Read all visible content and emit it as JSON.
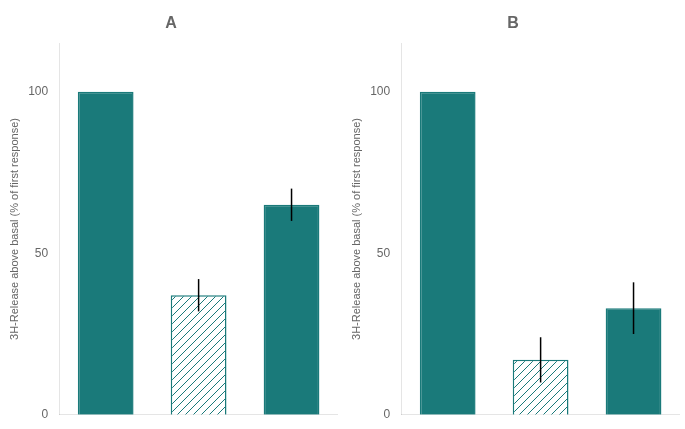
{
  "chart_data": [
    {
      "type": "bar",
      "title": "A",
      "categories": [
        null,
        null,
        null
      ],
      "values": [
        100,
        37,
        65
      ],
      "errors": [
        0,
        5,
        5
      ],
      "color": "#1a7a7a",
      "colors": [
        "#1a7a7a",
        "#ffffff",
        "#1a7a7a"
      ],
      "ylabel": "3H-Release above basal (% of first response)",
      "ylim": [
        0,
        115
      ],
      "yticks": [
        0,
        50,
        100
      ],
      "grid": false,
      "tick_labels": "y"
    },
    {
      "type": "bar",
      "title": "B",
      "categories": [
        null,
        null,
        null
      ],
      "values": [
        100,
        17,
        33
      ],
      "errors": [
        0,
        7,
        8
      ],
      "color": "#1a7a7a",
      "colors": [
        "#1a7a7a",
        "#ffffff",
        "#1a7a7a"
      ],
      "ylabel": "3H-Release above basal (% of first response)",
      "ylim": [
        0,
        115
      ],
      "yticks": [
        0,
        50,
        100
      ],
      "grid": false,
      "tick_labels": "y"
    }
  ]
}
